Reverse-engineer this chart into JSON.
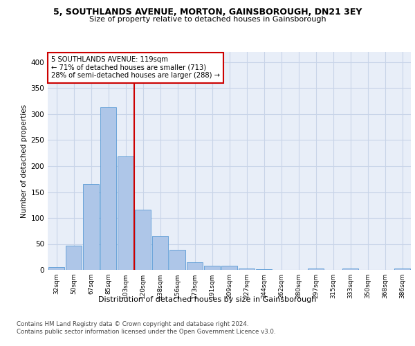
{
  "title1": "5, SOUTHLANDS AVENUE, MORTON, GAINSBOROUGH, DN21 3EY",
  "title2": "Size of property relative to detached houses in Gainsborough",
  "xlabel": "Distribution of detached houses by size in Gainsborough",
  "ylabel": "Number of detached properties",
  "categories": [
    "32sqm",
    "50sqm",
    "67sqm",
    "85sqm",
    "103sqm",
    "120sqm",
    "138sqm",
    "156sqm",
    "173sqm",
    "191sqm",
    "209sqm",
    "227sqm",
    "244sqm",
    "262sqm",
    "280sqm",
    "297sqm",
    "315sqm",
    "333sqm",
    "350sqm",
    "368sqm",
    "386sqm"
  ],
  "values": [
    5,
    47,
    165,
    313,
    218,
    116,
    66,
    39,
    15,
    8,
    8,
    3,
    1,
    0,
    0,
    3,
    0,
    3,
    0,
    0,
    3
  ],
  "bar_color": "#aec6e8",
  "bar_edge_color": "#5b9bd5",
  "vline_x": 4.5,
  "vline_color": "#cc0000",
  "annotation_line1": "5 SOUTHLANDS AVENUE: 119sqm",
  "annotation_line2": "← 71% of detached houses are smaller (713)",
  "annotation_line3": "28% of semi-detached houses are larger (288) →",
  "annotation_box_color": "#ffffff",
  "annotation_box_edge": "#cc0000",
  "grid_color": "#c8d4e8",
  "plot_bg_color": "#e8eef8",
  "footer1": "Contains HM Land Registry data © Crown copyright and database right 2024.",
  "footer2": "Contains public sector information licensed under the Open Government Licence v3.0.",
  "ylim": [
    0,
    420
  ],
  "yticks": [
    0,
    50,
    100,
    150,
    200,
    250,
    300,
    350,
    400
  ]
}
